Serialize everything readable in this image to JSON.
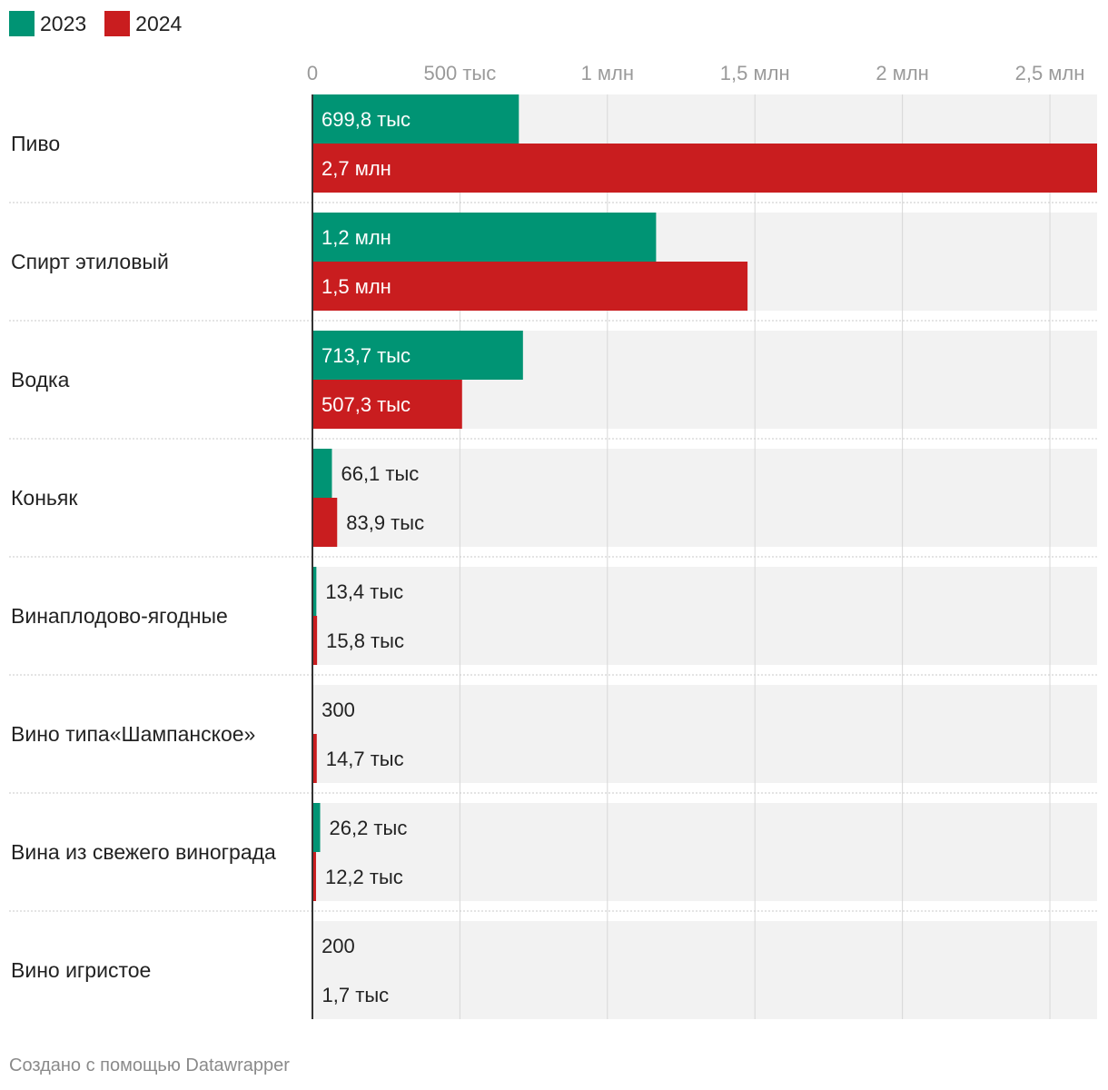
{
  "chart_data": {
    "type": "bar",
    "orientation": "horizontal",
    "grouped": true,
    "categories": [
      "Пиво",
      "Спирт этиловый",
      "Водка",
      "Коньяк",
      "Винаплодово-ягодные",
      "Вино типа«Шампанское»",
      "Вина из свежего винограда",
      "Вино игристое"
    ],
    "series": [
      {
        "name": "2023",
        "color": "#009474",
        "values": [
          699800,
          1165000,
          713700,
          66100,
          13400,
          300,
          26200,
          200
        ],
        "labels": [
          "699,8 тыс",
          "1,2 млн",
          "713,7 тыс",
          "66,1 тыс",
          "13,4 тыс",
          "300",
          "26,2 тыс",
          "200"
        ]
      },
      {
        "name": "2024",
        "color": "#c91d1f",
        "values": [
          2700000,
          1475000,
          507300,
          83900,
          15800,
          14700,
          12200,
          1700
        ],
        "labels": [
          "2,7 млн",
          "1,5 млн",
          "507,3 тыс",
          "83,9 тыс",
          "15,8 тыс",
          "14,7 тыс",
          "12,2 тыс",
          "1,7 тыс"
        ]
      }
    ],
    "xlim": [
      0,
      2660000
    ],
    "ticks": [
      {
        "value": 0,
        "label": "0"
      },
      {
        "value": 500000,
        "label": "500 тыс"
      },
      {
        "value": 1000000,
        "label": "1 млн"
      },
      {
        "value": 1500000,
        "label": "1,5 млн"
      },
      {
        "value": 2000000,
        "label": "2 млн"
      },
      {
        "value": 2500000,
        "label": "2,5 млн"
      }
    ],
    "legend_position": "top-left",
    "grid": true
  },
  "footer": "Создано с помощью Datawrapper"
}
